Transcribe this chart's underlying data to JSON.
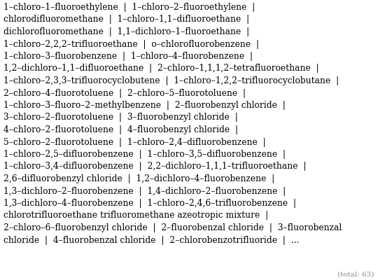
{
  "text": "1–chloro–1–fluoroethylene  |  1–chloro–2–fluoroethylene  |\nchlorodifluoromethane  |  1–chloro–1,1–difluoroethane  |\ndichlorofluoromethane  |  1,1–dichloro–1–fluoroethane  |\n1–chloro–2,2,2–trifluoroethane  |  o–chlorofluorobenzene  |\n1–chloro–3–fluorobenzene  |  1–chloro–4–fluorobenzene  |\n1,2–dichloro–1,1–difluoroethane  |  2–chloro–1,1,1,2–tetrafluoroethane  |\n1–chloro–2,3,3–trifluorocyclobutene  |  1–chloro–1,2,2–trifluorocyclobutane  |\n2–chloro–4–fluorotoluene  |  2–chloro–5–fluorotoluene  |\n1–chloro–3–fluoro–2–methylbenzene  |  2–fluorobenzyl chloride  |\n3–chloro–2–fluorotoluene  |  3–fluorobenzyl chloride  |\n4–chloro–2–fluorotoluene  |  4–fluorobenzyl chloride  |\n5–chloro–2–fluorotoluene  |  1–chloro–2,4–difluorobenzene  |\n1–chloro–2,5–difluorobenzene  |  1–chloro–3,5–difluorobenzene  |\n1–chloro–3,4–difluorobenzene  |  2,2–dichloro–1,1,1–trifluoroethane  |\n2,6–difluorobenzyl chloride  |  1,2–dichloro–4–fluorobenzene  |\n1,3–dichloro–2–fluorobenzene  |  1,4–dichloro–2–fluorobenzene  |\n1,3–dichloro–4–fluorobenzene  |  1–chloro–2,4,6–trifluorobenzene  |\nchlorotrifluoroethane trifluoromethane azeotropic mixture  |\n2–chloro–6–fluorobenzyl chloride  |  2–fluorobenzal chloride  |  3–fluorobenzal\nchloride  |  4–fluorobenzal chloride  |  2–chlorobenzotrifluoride  |  ...",
  "total_note": "(total: 63)",
  "bg_color": "#ffffff",
  "text_color": "#000000",
  "total_color": "#888888",
  "font_size": 8.8,
  "total_font_size": 7.5,
  "figsize": [
    5.4,
    4.0
  ],
  "dpi": 100,
  "font_family": "DejaVu Serif"
}
